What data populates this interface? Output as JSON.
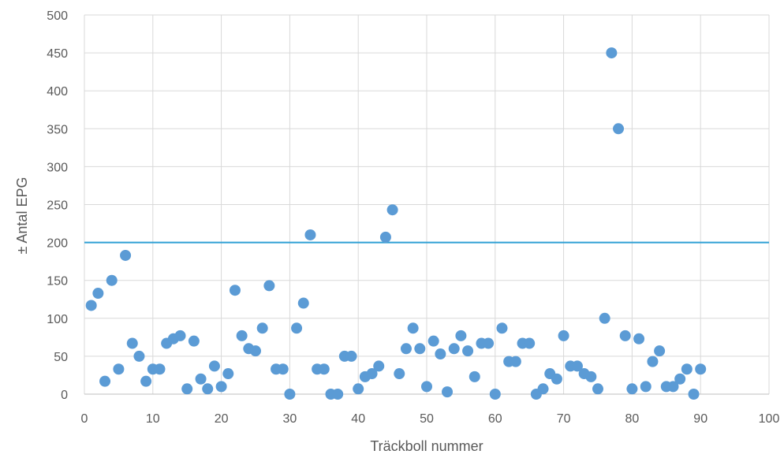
{
  "chart_data": {
    "type": "scatter",
    "title": "",
    "xlabel": "Träckboll nummer",
    "ylabel": "± Antal EPG",
    "xlim": [
      0,
      100
    ],
    "ylim": [
      0,
      500
    ],
    "xticks": [
      0,
      10,
      20,
      30,
      40,
      50,
      60,
      70,
      80,
      90,
      100
    ],
    "yticks": [
      0,
      50,
      100,
      150,
      200,
      250,
      300,
      350,
      400,
      450,
      500
    ],
    "grid": true,
    "legend": "none",
    "reference_line": {
      "y": 200,
      "color": "#2e9fd4"
    },
    "series": [
      {
        "color": "#5b9bd5",
        "points": [
          [
            1,
            117
          ],
          [
            2,
            133
          ],
          [
            3,
            17
          ],
          [
            4,
            150
          ],
          [
            5,
            33
          ],
          [
            6,
            183
          ],
          [
            7,
            67
          ],
          [
            8,
            50
          ],
          [
            9,
            17
          ],
          [
            10,
            33
          ],
          [
            11,
            33
          ],
          [
            12,
            67
          ],
          [
            13,
            73
          ],
          [
            14,
            77
          ],
          [
            15,
            7
          ],
          [
            16,
            70
          ],
          [
            17,
            20
          ],
          [
            18,
            7
          ],
          [
            19,
            37
          ],
          [
            20,
            10
          ],
          [
            21,
            27
          ],
          [
            22,
            137
          ],
          [
            23,
            77
          ],
          [
            24,
            60
          ],
          [
            25,
            57
          ],
          [
            26,
            87
          ],
          [
            27,
            143
          ],
          [
            28,
            33
          ],
          [
            29,
            33
          ],
          [
            30,
            0
          ],
          [
            31,
            87
          ],
          [
            32,
            120
          ],
          [
            33,
            210
          ],
          [
            34,
            33
          ],
          [
            35,
            33
          ],
          [
            36,
            0
          ],
          [
            37,
            0
          ],
          [
            38,
            50
          ],
          [
            39,
            50
          ],
          [
            40,
            7
          ],
          [
            41,
            23
          ],
          [
            42,
            27
          ],
          [
            43,
            37
          ],
          [
            44,
            207
          ],
          [
            45,
            243
          ],
          [
            46,
            27
          ],
          [
            47,
            60
          ],
          [
            48,
            87
          ],
          [
            49,
            60
          ],
          [
            50,
            10
          ],
          [
            51,
            70
          ],
          [
            52,
            53
          ],
          [
            53,
            3
          ],
          [
            54,
            60
          ],
          [
            55,
            77
          ],
          [
            56,
            57
          ],
          [
            57,
            23
          ],
          [
            58,
            67
          ],
          [
            59,
            67
          ],
          [
            60,
            0
          ],
          [
            61,
            87
          ],
          [
            62,
            43
          ],
          [
            63,
            43
          ],
          [
            64,
            67
          ],
          [
            65,
            67
          ],
          [
            66,
            0
          ],
          [
            67,
            7
          ],
          [
            68,
            27
          ],
          [
            69,
            20
          ],
          [
            70,
            77
          ],
          [
            71,
            37
          ],
          [
            72,
            37
          ],
          [
            73,
            27
          ],
          [
            74,
            23
          ],
          [
            75,
            7
          ],
          [
            76,
            100
          ],
          [
            77,
            450
          ],
          [
            78,
            350
          ],
          [
            79,
            77
          ],
          [
            80,
            7
          ],
          [
            81,
            73
          ],
          [
            82,
            10
          ],
          [
            83,
            43
          ],
          [
            84,
            57
          ],
          [
            85,
            10
          ],
          [
            86,
            10
          ],
          [
            87,
            20
          ],
          [
            88,
            33
          ],
          [
            89,
            0
          ],
          [
            90,
            33
          ]
        ]
      }
    ]
  }
}
